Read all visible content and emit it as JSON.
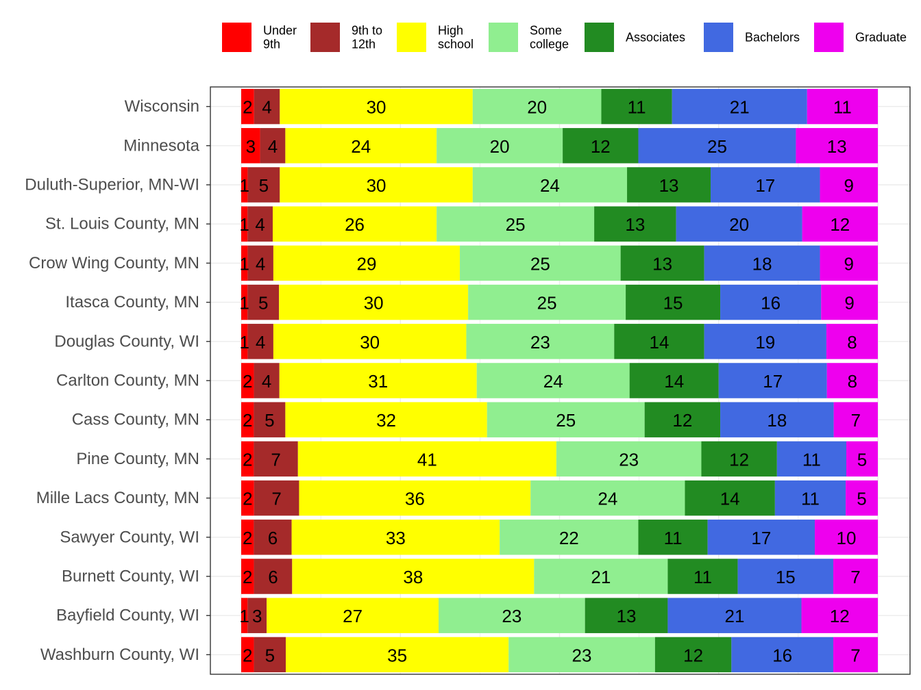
{
  "chart_data": {
    "type": "bar",
    "orientation": "horizontal",
    "stacked": true,
    "normalized": true,
    "grid": true,
    "legend_position": "top",
    "categories": [
      "Wisconsin",
      "Minnesota",
      "Duluth-Superior, MN-WI",
      "St. Louis County, MN",
      "Crow Wing County, MN",
      "Itasca County, MN",
      "Douglas County, WI",
      "Carlton County, MN",
      "Cass County, MN",
      "Pine County, MN",
      "Mille Lacs County, MN",
      "Sawyer County, WI",
      "Burnett County, WI",
      "Bayfield County, WI",
      "Washburn County, WI"
    ],
    "series": [
      {
        "name": "Under 9th",
        "legend_lines": [
          "Under",
          "9th"
        ],
        "color": "#ff0000",
        "values": [
          2,
          3,
          1,
          1,
          1,
          1,
          1,
          2,
          2,
          2,
          2,
          2,
          2,
          1,
          2
        ]
      },
      {
        "name": "9th to 12th",
        "legend_lines": [
          "9th to",
          "12th"
        ],
        "color": "#a52a2a",
        "values": [
          4,
          4,
          5,
          4,
          4,
          5,
          4,
          4,
          5,
          7,
          7,
          6,
          6,
          3,
          5
        ]
      },
      {
        "name": "High school",
        "legend_lines": [
          "High",
          "school"
        ],
        "color": "#ffff00",
        "values": [
          30,
          24,
          30,
          26,
          29,
          30,
          30,
          31,
          32,
          41,
          36,
          33,
          38,
          27,
          35
        ]
      },
      {
        "name": "Some college",
        "legend_lines": [
          "Some",
          "college"
        ],
        "color": "#90ee90",
        "values": [
          20,
          20,
          24,
          25,
          25,
          25,
          23,
          24,
          25,
          23,
          24,
          22,
          21,
          23,
          23
        ]
      },
      {
        "name": "Associates",
        "legend_lines": [
          "Associates"
        ],
        "color": "#228b22",
        "values": [
          11,
          12,
          13,
          13,
          13,
          15,
          14,
          14,
          12,
          12,
          14,
          11,
          11,
          13,
          12
        ]
      },
      {
        "name": "Bachelors",
        "legend_lines": [
          "Bachelors"
        ],
        "color": "#4169e1",
        "values": [
          21,
          25,
          17,
          20,
          18,
          16,
          19,
          17,
          18,
          11,
          11,
          17,
          15,
          21,
          16
        ]
      },
      {
        "name": "Graduate",
        "legend_lines": [
          "Graduate"
        ],
        "color": "#ee00ee",
        "values": [
          11,
          13,
          9,
          12,
          9,
          9,
          8,
          8,
          7,
          5,
          5,
          10,
          7,
          12,
          7
        ]
      }
    ]
  }
}
